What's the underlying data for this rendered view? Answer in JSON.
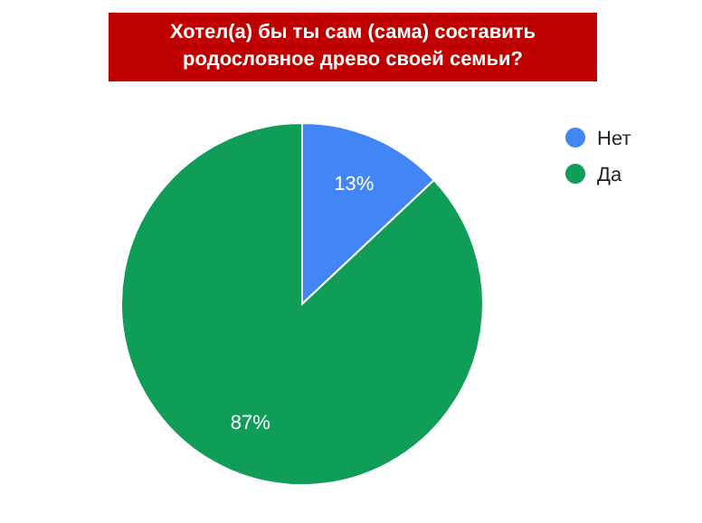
{
  "chart_data": {
    "type": "pie",
    "title": "Хотел(а) бы ты сам (сама) составить родословное древо своей семьи?",
    "categories": [
      "Нет",
      "Да"
    ],
    "values": [
      13,
      87
    ],
    "colors": [
      "#4285f4",
      "#0f9d58"
    ],
    "value_labels": [
      "13%",
      "87%"
    ],
    "legend": "right"
  }
}
